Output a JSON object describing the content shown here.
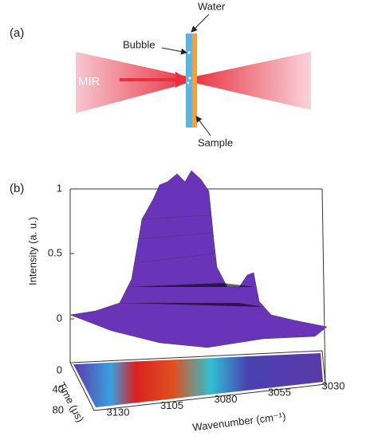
{
  "panel_a": {
    "label": "(a)",
    "water": "Water",
    "bubble": "Bubble",
    "mir": "MIR",
    "sample": "Sample"
  },
  "panel_b": {
    "label": "(b)",
    "z_axis_label": "Intensity (a. u.)",
    "z_ticks": [
      "0",
      "0.5",
      "1"
    ],
    "time_axis_label": "Time (μs)",
    "time_ticks": [
      "0",
      "40",
      "80"
    ],
    "wavenumber_axis_label": "Wavenumber (cm⁻¹)",
    "wavenumber_ticks": [
      "3130",
      "3105",
      "3080",
      "3055",
      "3030"
    ]
  }
}
